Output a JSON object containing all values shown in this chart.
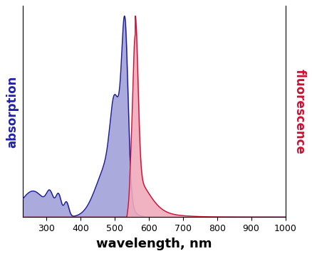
{
  "xlabel": "wavelength, nm",
  "ylabel_left": "absorption",
  "ylabel_right": "fluorescence",
  "ylabel_left_color": "#2222aa",
  "ylabel_right_color": "#cc1133",
  "absorption_line_color": "#1a1a99",
  "absorption_fill_color": "#aaaadd",
  "fluorescence_line_color": "#cc1133",
  "fluorescence_fill_color": "#f0aabb",
  "xlim": [
    230,
    1000
  ],
  "ylim": [
    0,
    1.05
  ],
  "background_color": "#ffffff",
  "xlabel_fontsize": 13,
  "ylabel_fontsize": 12
}
